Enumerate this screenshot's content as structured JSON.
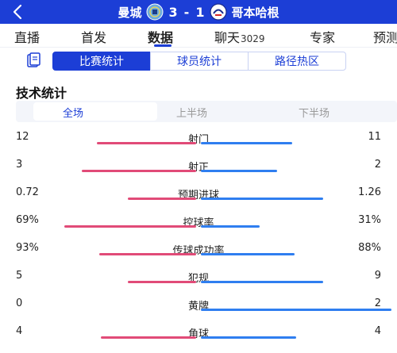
{
  "header": {
    "home_team": "曼城",
    "home_score": "3",
    "separator": "-",
    "away_score": "1",
    "away_team": "哥本哈根",
    "home_color": "#6cabdd",
    "away_color": "#ffffff"
  },
  "nav": {
    "items": [
      {
        "label": "直播",
        "count": ""
      },
      {
        "label": "首发",
        "count": ""
      },
      {
        "label": "数据",
        "count": ""
      },
      {
        "label": "聊天",
        "count": "3029"
      },
      {
        "label": "专家",
        "count": ""
      },
      {
        "label": "预测",
        "count": ""
      }
    ],
    "active_index": 2
  },
  "sub_tabs": {
    "items": [
      "比赛统计",
      "球员统计",
      "路径热区"
    ],
    "active_index": 0
  },
  "section_title": "技术统计",
  "periods": {
    "items": [
      "全场",
      "上半场",
      "下半场"
    ],
    "active_index": 0
  },
  "colors": {
    "accent": "#1c3ed6",
    "home_bar": "#e14b78",
    "away_bar": "#2f7ef0"
  },
  "stats": [
    {
      "label": "射门",
      "home": "12",
      "away": "11",
      "home_share": 0.52,
      "away_share": 0.48
    },
    {
      "label": "射正",
      "home": "3",
      "away": "2",
      "home_share": 0.6,
      "away_share": 0.4
    },
    {
      "label": "预期进球",
      "home": "0.72",
      "away": "1.26",
      "home_share": 0.36,
      "away_share": 0.64
    },
    {
      "label": "控球率",
      "home": "69%",
      "away": "31%",
      "home_share": 0.69,
      "away_share": 0.31
    },
    {
      "label": "传球成功率",
      "home": "93%",
      "away": "88%",
      "home_share": 0.51,
      "away_share": 0.49
    },
    {
      "label": "犯规",
      "home": "5",
      "away": "9",
      "home_share": 0.36,
      "away_share": 0.64
    },
    {
      "label": "黄牌",
      "home": "0",
      "away": "2",
      "home_share": 0.0,
      "away_share": 1.0
    },
    {
      "label": "角球",
      "home": "4",
      "away": "4",
      "home_share": 0.5,
      "away_share": 0.5
    }
  ]
}
